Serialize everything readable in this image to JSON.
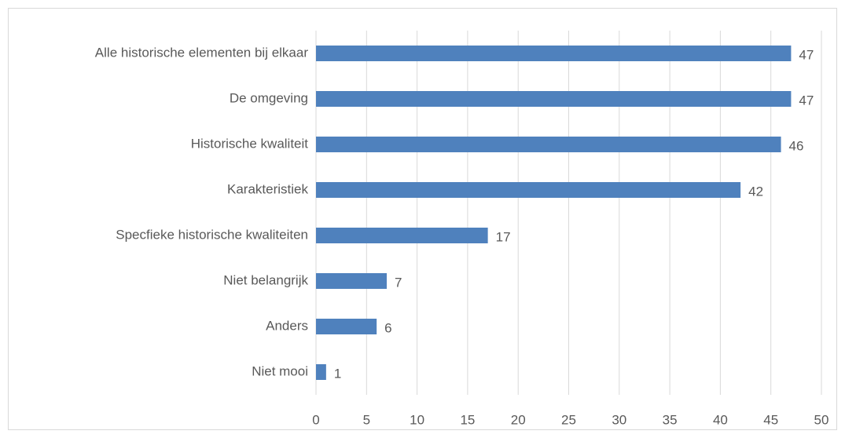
{
  "chart_data": {
    "type": "bar",
    "orientation": "horizontal",
    "categories": [
      "Alle historische elementen bij elkaar",
      "De omgeving",
      "Historische kwaliteit",
      "Karakteristiek",
      "Specfieke historische kwaliteiten",
      "Niet belangrijk",
      "Anders",
      "Niet mooi"
    ],
    "values": [
      47,
      47,
      46,
      42,
      17,
      7,
      6,
      1
    ],
    "color": "#4f81bd",
    "xlim": [
      0,
      50
    ],
    "xticks": [
      0,
      5,
      10,
      15,
      20,
      25,
      30,
      35,
      40,
      45,
      50
    ],
    "grid": true
  }
}
